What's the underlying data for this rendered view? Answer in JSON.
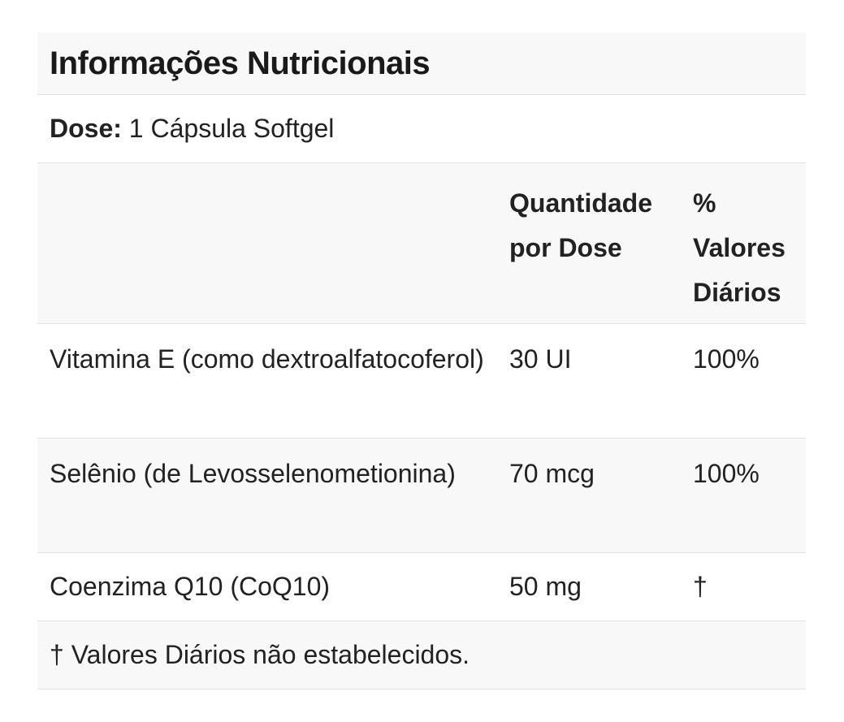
{
  "title": "Informações Nutricionais",
  "dose": {
    "label": "Dose:",
    "value": " 1 Cápsula Softgel"
  },
  "columns": {
    "amount": "Quantidade\npor Dose",
    "daily_value": "%\nValores\nDiários"
  },
  "rows": [
    {
      "name": "Vitamina E (como dextroalfatocoferol)",
      "amount": "30 UI",
      "daily_value": "100%"
    },
    {
      "name": "Selênio (de Levosselenometionina)",
      "amount": "70 mcg",
      "daily_value": "100%"
    },
    {
      "name": "Coenzima Q10 (CoQ10)",
      "amount": "50 mg",
      "daily_value": "†"
    }
  ],
  "footnote": "† Valores Diários não estabelecidos."
}
